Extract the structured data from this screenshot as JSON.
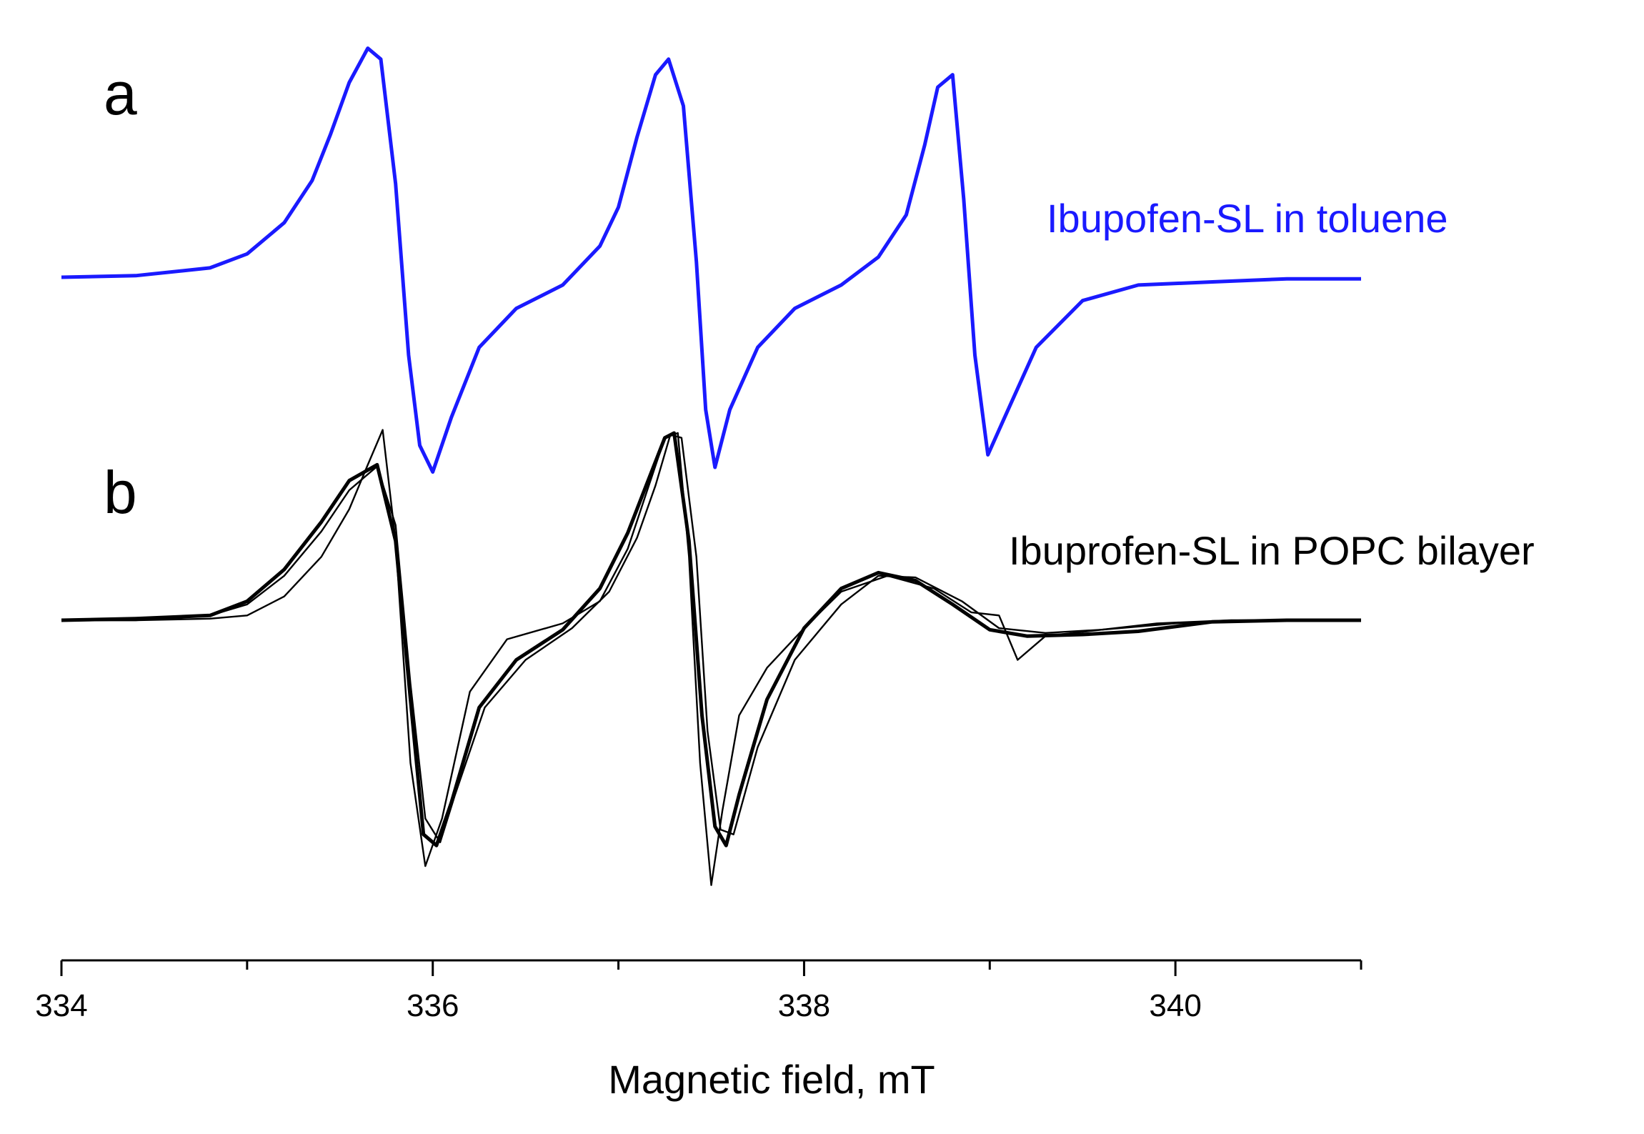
{
  "chart_data": {
    "type": "line",
    "xlabel": "Magnetic field, mT",
    "ylabel": "",
    "xlim": [
      334,
      341
    ],
    "xticks_major": [
      334,
      336,
      338,
      340
    ],
    "xticks_minor": [
      335,
      337,
      339,
      341
    ],
    "tick_labels": [
      "334",
      "336",
      "338",
      "340"
    ],
    "grid": false,
    "panels": [
      {
        "letter": "a",
        "label": "Ibupofen-SL in toluene",
        "label_color": "#1a1aff",
        "series": [
          {
            "color": "#1a1aff",
            "style": "thick",
            "x": [
              334.0,
              334.4,
              334.8,
              335.0,
              335.2,
              335.35,
              335.45,
              335.55,
              335.65,
              335.72,
              335.8,
              335.87,
              335.93,
              336.0,
              336.1,
              336.25,
              336.45,
              336.7,
              336.9,
              337.0,
              337.1,
              337.2,
              337.27,
              337.35,
              337.42,
              337.47,
              337.52,
              337.6,
              337.75,
              337.95,
              338.2,
              338.4,
              338.55,
              338.65,
              338.72,
              338.8,
              338.86,
              338.92,
              338.99,
              339.08,
              339.25,
              339.5,
              339.8,
              340.2,
              340.6,
              341.0
            ],
            "y": [
              0.0,
              0.01,
              0.06,
              0.15,
              0.35,
              0.62,
              0.92,
              1.25,
              1.47,
              1.4,
              0.6,
              -0.5,
              -1.08,
              -1.25,
              -0.9,
              -0.45,
              -0.2,
              -0.05,
              0.2,
              0.45,
              0.9,
              1.3,
              1.4,
              1.1,
              0.1,
              -0.85,
              -1.22,
              -0.85,
              -0.45,
              -0.2,
              -0.05,
              0.13,
              0.4,
              0.85,
              1.22,
              1.3,
              0.5,
              -0.5,
              -1.14,
              -0.9,
              -0.45,
              -0.15,
              -0.05,
              -0.03,
              -0.01,
              -0.01
            ]
          }
        ]
      },
      {
        "letter": "b",
        "label": "Ibuprofen-SL in POPC bilayer",
        "label_color": "#000000",
        "series": [
          {
            "color": "#000000",
            "style": "thick",
            "x": [
              334.0,
              334.4,
              334.8,
              335.0,
              335.2,
              335.4,
              335.55,
              335.7,
              335.8,
              335.88,
              335.95,
              336.02,
              336.1,
              336.25,
              336.45,
              336.7,
              336.9,
              337.05,
              337.15,
              337.25,
              337.3,
              337.38,
              337.45,
              337.52,
              337.58,
              337.65,
              337.8,
              338.0,
              338.2,
              338.4,
              338.6,
              338.8,
              339.0,
              339.2,
              339.5,
              339.8,
              340.2,
              340.6,
              341.0
            ],
            "y": [
              0.0,
              0.01,
              0.03,
              0.12,
              0.32,
              0.62,
              0.88,
              0.98,
              0.5,
              -0.5,
              -1.35,
              -1.42,
              -1.15,
              -0.55,
              -0.25,
              -0.06,
              0.2,
              0.55,
              0.85,
              1.15,
              1.18,
              0.5,
              -0.6,
              -1.3,
              -1.42,
              -1.1,
              -0.5,
              -0.05,
              0.2,
              0.3,
              0.25,
              0.1,
              -0.06,
              -0.1,
              -0.09,
              -0.07,
              -0.01,
              0.0,
              0.0
            ]
          },
          {
            "color": "#000000",
            "style": "thin",
            "x": [
              334.0,
              334.4,
              334.8,
              335.0,
              335.2,
              335.4,
              335.55,
              335.65,
              335.73,
              335.8,
              335.88,
              335.96,
              336.05,
              336.2,
              336.4,
              336.7,
              336.9,
              337.05,
              337.15,
              337.25,
              337.32,
              337.38,
              337.44,
              337.5,
              337.56,
              337.65,
              337.8,
              338.0,
              338.2,
              338.45,
              338.7,
              338.9,
              339.05,
              339.15,
              339.3,
              339.6,
              339.9,
              340.3,
              340.6,
              341.0
            ],
            "y": [
              0.0,
              0.0,
              0.01,
              0.03,
              0.15,
              0.4,
              0.7,
              0.98,
              1.2,
              0.5,
              -0.9,
              -1.55,
              -1.25,
              -0.45,
              -0.12,
              -0.02,
              0.12,
              0.45,
              0.8,
              1.15,
              1.18,
              0.4,
              -0.9,
              -1.67,
              -1.2,
              -0.6,
              -0.3,
              -0.05,
              0.18,
              0.28,
              0.2,
              0.05,
              0.03,
              -0.25,
              -0.1,
              -0.06,
              -0.02,
              0.0,
              0.0,
              0.0
            ]
          },
          {
            "color": "#000000",
            "style": "thin",
            "x": [
              334.0,
              334.4,
              334.8,
              335.0,
              335.2,
              335.4,
              335.55,
              335.7,
              335.8,
              335.88,
              335.96,
              336.04,
              336.12,
              336.28,
              336.5,
              336.75,
              336.95,
              337.1,
              337.2,
              337.28,
              337.34,
              337.42,
              337.48,
              337.55,
              337.62,
              337.75,
              337.95,
              338.2,
              338.4,
              338.6,
              338.85,
              339.05,
              339.3,
              339.6,
              340.0,
              340.5,
              341.0
            ],
            "y": [
              0.0,
              0.0,
              0.03,
              0.1,
              0.28,
              0.56,
              0.82,
              0.97,
              0.6,
              -0.4,
              -1.25,
              -1.4,
              -1.1,
              -0.55,
              -0.25,
              -0.05,
              0.18,
              0.52,
              0.85,
              1.17,
              1.15,
              0.4,
              -0.7,
              -1.32,
              -1.35,
              -0.8,
              -0.25,
              0.1,
              0.28,
              0.27,
              0.12,
              -0.05,
              -0.08,
              -0.06,
              -0.02,
              0.0,
              0.0
            ]
          }
        ]
      }
    ]
  }
}
